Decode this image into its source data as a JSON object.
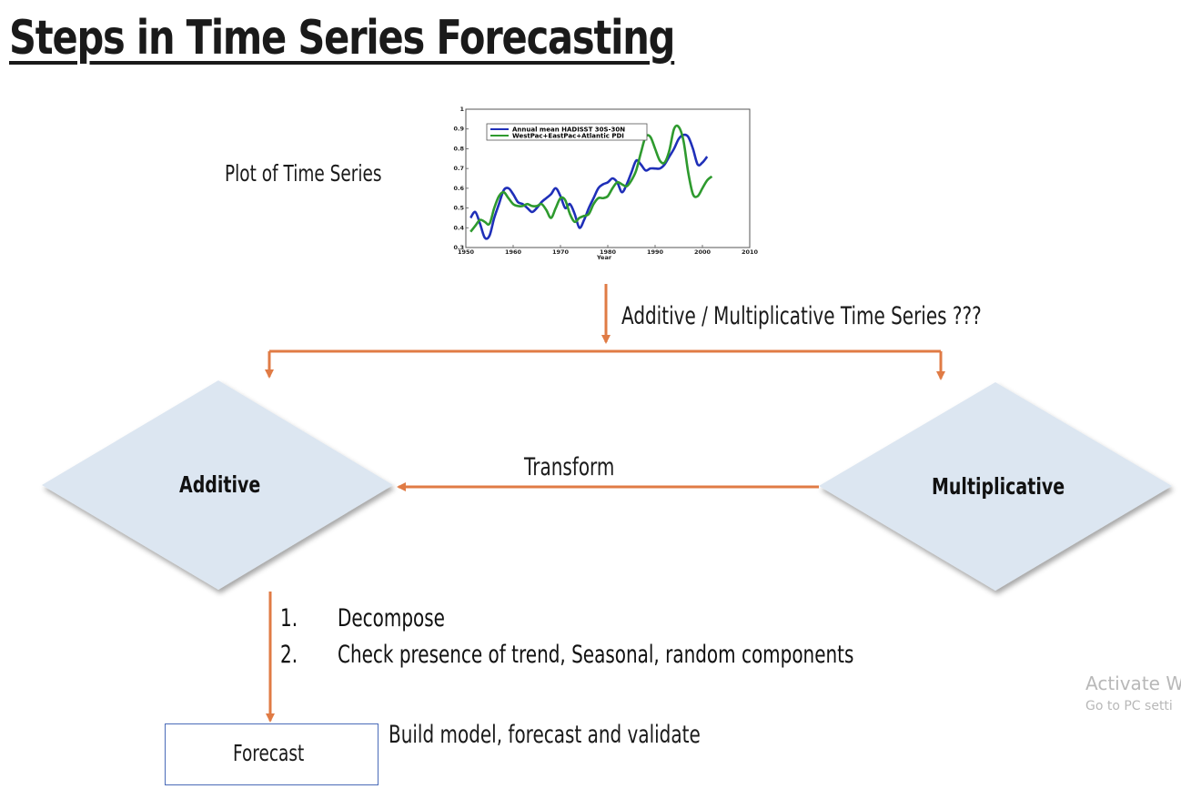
{
  "title": "Steps in Time Series Forecasting",
  "plot_label": "Plot of Time Series",
  "question_label": "Additive / Multiplicative Time Series ???",
  "transform_label": "Transform",
  "diamonds": {
    "additive": "Additive",
    "multiplicative": "Multiplicative"
  },
  "steps": [
    {
      "num": "1.",
      "text": "Decompose"
    },
    {
      "num": "2.",
      "text": "Check presence of trend, Seasonal, random components"
    }
  ],
  "forecast_label": "Forecast",
  "build_label": "Build model, forecast and validate",
  "watermark": {
    "line1": "Activate W",
    "line2": "Go to PC setti"
  },
  "colors": {
    "arrow": "#e07b45",
    "diamond_fill": "#dce6f1",
    "box_border": "#4a6bb8",
    "series1": "#1f2fb8",
    "series2": "#2e9a2e"
  },
  "chart_data": {
    "type": "line",
    "xlabel": "Year",
    "ylabel": "",
    "xlim": [
      1950,
      2010
    ],
    "ylim": [
      0.3,
      1.0
    ],
    "xticks": [
      "1950",
      "1960",
      "1970",
      "1980",
      "1990",
      "2000",
      "2010"
    ],
    "yticks": [
      "0.3",
      "0.4",
      "0.5",
      "0.6",
      "0.7",
      "0.8",
      "0.9",
      "1"
    ],
    "legend_position": "top-left",
    "series": [
      {
        "name": "Annual mean HADISST 30S-30N",
        "x": [
          1951,
          1952,
          1953,
          1954,
          1955,
          1956,
          1957,
          1958,
          1959,
          1960,
          1961,
          1962,
          1963,
          1964,
          1965,
          1966,
          1967,
          1968,
          1969,
          1970,
          1971,
          1972,
          1973,
          1974,
          1975,
          1976,
          1977,
          1978,
          1979,
          1980,
          1981,
          1982,
          1983,
          1984,
          1985,
          1986,
          1987,
          1988,
          1989,
          1990,
          1991,
          1992,
          1993,
          1994,
          1995,
          1996,
          1997,
          1998,
          1999,
          2000,
          2001
        ],
        "y": [
          0.45,
          0.48,
          0.42,
          0.35,
          0.36,
          0.45,
          0.52,
          0.59,
          0.6,
          0.57,
          0.53,
          0.52,
          0.5,
          0.48,
          0.5,
          0.53,
          0.55,
          0.57,
          0.6,
          0.56,
          0.5,
          0.52,
          0.47,
          0.4,
          0.44,
          0.5,
          0.55,
          0.6,
          0.62,
          0.63,
          0.65,
          0.63,
          0.58,
          0.62,
          0.68,
          0.74,
          0.72,
          0.69,
          0.7,
          0.7,
          0.7,
          0.72,
          0.76,
          0.8,
          0.85,
          0.87,
          0.86,
          0.8,
          0.72,
          0.73,
          0.76
        ]
      },
      {
        "name": "WestPac+EastPac+Atlantic PDI",
        "x": [
          1951,
          1952,
          1953,
          1954,
          1955,
          1956,
          1957,
          1958,
          1959,
          1960,
          1961,
          1962,
          1963,
          1964,
          1965,
          1966,
          1967,
          1968,
          1969,
          1970,
          1971,
          1972,
          1973,
          1974,
          1975,
          1976,
          1977,
          1978,
          1979,
          1980,
          1981,
          1982,
          1983,
          1984,
          1985,
          1986,
          1987,
          1988,
          1989,
          1990,
          1991,
          1992,
          1993,
          1994,
          1995,
          1996,
          1997,
          1998,
          1999,
          2000,
          2001,
          2002
        ],
        "y": [
          0.38,
          0.41,
          0.44,
          0.43,
          0.42,
          0.5,
          0.56,
          0.58,
          0.55,
          0.52,
          0.51,
          0.51,
          0.52,
          0.51,
          0.51,
          0.52,
          0.49,
          0.45,
          0.5,
          0.55,
          0.54,
          0.47,
          0.43,
          0.45,
          0.46,
          0.47,
          0.52,
          0.55,
          0.55,
          0.56,
          0.6,
          0.63,
          0.62,
          0.61,
          0.64,
          0.69,
          0.78,
          0.86,
          0.86,
          0.8,
          0.74,
          0.73,
          0.79,
          0.9,
          0.91,
          0.84,
          0.68,
          0.57,
          0.56,
          0.6,
          0.64,
          0.66
        ]
      }
    ]
  }
}
